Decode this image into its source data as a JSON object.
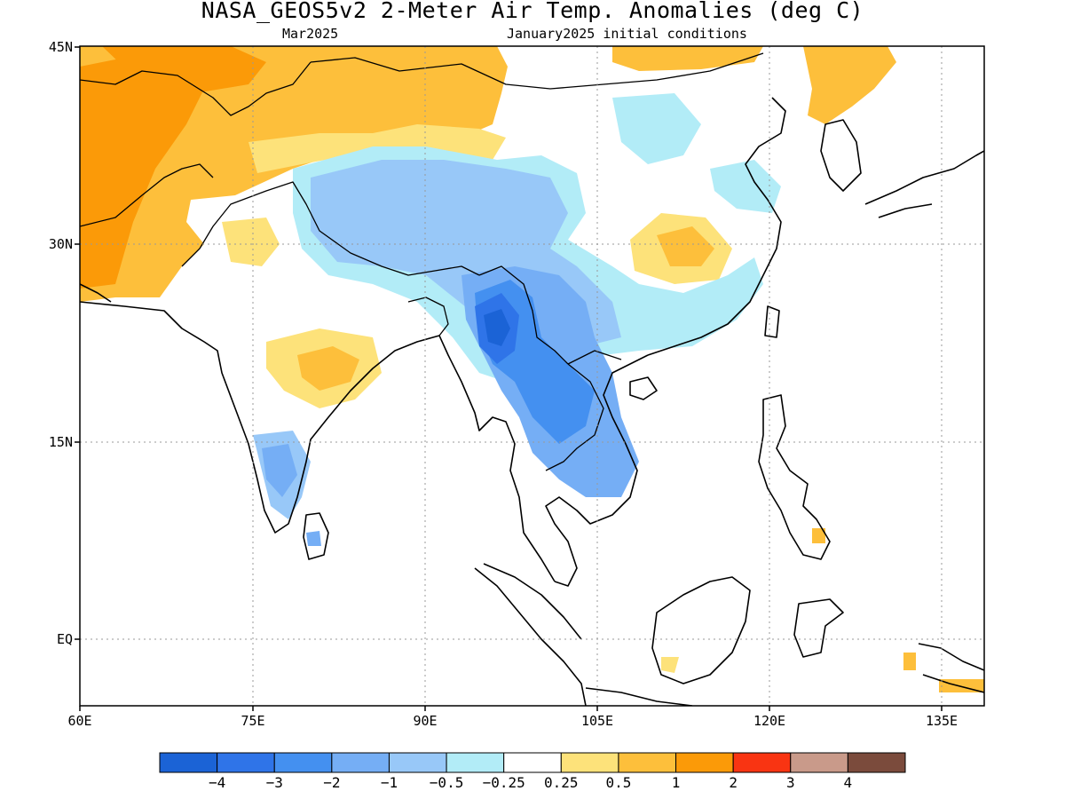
{
  "header": {
    "title": "NASA_GEOS5v2 2-Meter Air Temp. Anomalies (deg C)",
    "valid_month": "Mar2025",
    "init_conditions": "January2025 initial conditions"
  },
  "map": {
    "region": "South and Southeast Asia",
    "lon_range": [
      60,
      140
    ],
    "lat_range": [
      -6,
      45
    ],
    "lat_ticks": [
      {
        "value": 45,
        "label": "45N"
      },
      {
        "value": 30,
        "label": "30N"
      },
      {
        "value": 15,
        "label": "15N"
      },
      {
        "value": 0,
        "label": "EQ"
      }
    ],
    "lon_ticks": [
      {
        "value": 60,
        "label": "60E"
      },
      {
        "value": 75,
        "label": "75E"
      },
      {
        "value": 90,
        "label": "90E"
      },
      {
        "value": 105,
        "label": "105E"
      },
      {
        "value": 120,
        "label": "120E"
      },
      {
        "value": 135,
        "label": "135E"
      }
    ],
    "grid": "dotted",
    "coastlines": true,
    "country_borders": true
  },
  "colorbar": {
    "bins": [
      {
        "color": "#1b63d6"
      },
      {
        "color": "#2f74e8"
      },
      {
        "color": "#4490f0"
      },
      {
        "color": "#75aef5"
      },
      {
        "color": "#98c8f8"
      },
      {
        "color": "#b2ecf7"
      },
      {
        "color": "#ffffff"
      },
      {
        "color": "#fde27a"
      },
      {
        "color": "#fdbf3b"
      },
      {
        "color": "#fb9a08"
      },
      {
        "color": "#f93412"
      },
      {
        "color": "#c99a8a"
      },
      {
        "color": "#7b4b3c"
      }
    ],
    "labels": [
      "−4",
      "−3",
      "−2",
      "−1",
      "−0.5",
      "−0.25",
      "0.25",
      "0.5",
      "1",
      "2",
      "3",
      "4"
    ]
  }
}
